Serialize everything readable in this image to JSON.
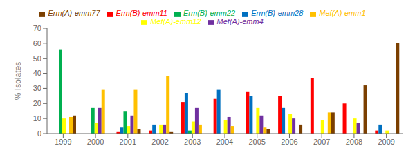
{
  "chart_data": {
    "type": "bar",
    "ylabel": "% Isolates",
    "categories": [
      "1999",
      "2000",
      "2001",
      "2002",
      "2003",
      "2004",
      "2005",
      "2006",
      "2007",
      "2008",
      "2009"
    ],
    "series": [
      {
        "name": "Erm(B)-emm11",
        "color": "#FF0000",
        "values": [
          0,
          0,
          1,
          2,
          21,
          23,
          28,
          25,
          37,
          20,
          2
        ]
      },
      {
        "name": "Erm(B)-emm28",
        "color": "#0070C0",
        "values": [
          0,
          0,
          4,
          6,
          27,
          29,
          25,
          17,
          0,
          0,
          6
        ]
      },
      {
        "name": "Erm(B)-emm22",
        "color": "#00B050",
        "values": [
          56,
          17,
          15,
          0,
          2,
          0,
          0,
          0,
          0,
          0,
          0
        ]
      },
      {
        "name": "Mef(A)-emm12",
        "color": "#FFFF00",
        "values": [
          10,
          7,
          5,
          6,
          8,
          9,
          17,
          13,
          9,
          10,
          2
        ]
      },
      {
        "name": "Mef(A)-emm4",
        "color": "#7030A0",
        "values": [
          0,
          17,
          12,
          6,
          17,
          11,
          12,
          10,
          0,
          7,
          0
        ]
      },
      {
        "name": "Mef(A)-emm1",
        "color": "#FFC000",
        "values": [
          11,
          29,
          29,
          38,
          6,
          5,
          4,
          0,
          14,
          0,
          0
        ]
      },
      {
        "name": "Erm(A)-emm77",
        "color": "#7B3F00",
        "values": [
          12,
          0,
          3,
          1,
          0,
          0,
          3,
          6,
          14,
          32,
          60
        ]
      }
    ],
    "ylim": [
      0,
      70
    ],
    "yticks": [
      0,
      10,
      20,
      30,
      40,
      50,
      60,
      70
    ],
    "grid": false,
    "legend": "top"
  }
}
